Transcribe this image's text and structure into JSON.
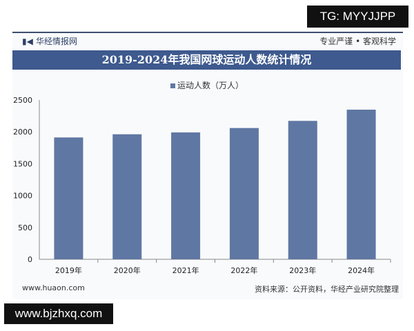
{
  "header": {
    "brand": "华经情报网",
    "slogan": "专业严谨 • 客观科学"
  },
  "overlay": {
    "tg": "TG: MYYJJPP",
    "site": "www.bjzhxq.com"
  },
  "footer": {
    "website": "www.huaon.com",
    "source": "资料来源：公开资料，华经产业研究院整理"
  },
  "chart_data": {
    "type": "bar",
    "title": "2019-2024年我国网球运动人数统计情况",
    "categories": [
      "2019年",
      "2020年",
      "2021年",
      "2022年",
      "2023年",
      "2024年"
    ],
    "series": [
      {
        "name": "运动人数（万人）",
        "values": [
          1912,
          1962,
          1991,
          2060,
          2172,
          2348
        ]
      }
    ],
    "ylim": [
      0,
      2500
    ],
    "yticks": [
      "0",
      "500",
      "1000",
      "1500",
      "2000",
      "2500"
    ],
    "grid": false,
    "legend": "top",
    "color": "#5f77a3"
  }
}
